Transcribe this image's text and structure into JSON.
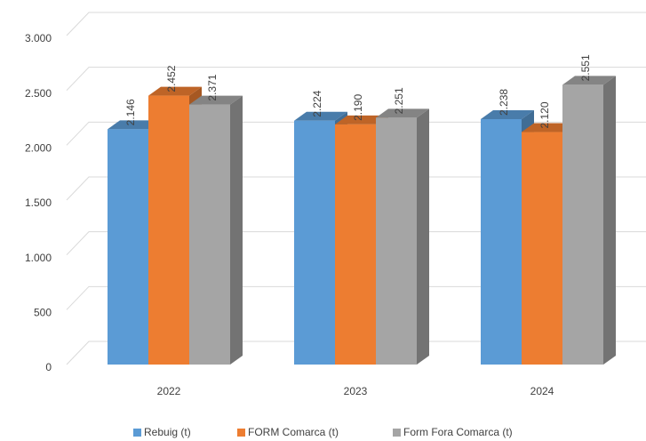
{
  "chart_data": {
    "type": "bar3d",
    "categories": [
      "2022",
      "2023",
      "2024"
    ],
    "series": [
      {
        "name": "Rebuig (t)",
        "color": "#5b9bd5",
        "values": [
          2146,
          2224,
          2238
        ],
        "value_labels": [
          "2.146",
          "2.224",
          "2.238"
        ]
      },
      {
        "name": "FORM Comarca (t)",
        "color": "#ed7d31",
        "values": [
          2452,
          2190,
          2120
        ],
        "value_labels": [
          "2.452",
          "2.190",
          "2.120"
        ]
      },
      {
        "name": "Form Fora Comarca (t)",
        "color": "#a5a5a5",
        "values": [
          2371,
          2251,
          2551
        ],
        "value_labels": [
          "2.371",
          "2.251",
          "2.551"
        ]
      }
    ],
    "ylim": [
      0,
      3000
    ],
    "yticks": [
      0,
      500,
      {
        "value": 1000,
        "label": "1.000"
      },
      {
        "value": 1500,
        "label": "1.500"
      },
      {
        "value": 2000,
        "label": "2.000"
      },
      {
        "value": 2500,
        "label": "2.500"
      },
      {
        "value": 3000,
        "label": "3.000"
      }
    ],
    "grid": true,
    "legend": "bottom"
  }
}
